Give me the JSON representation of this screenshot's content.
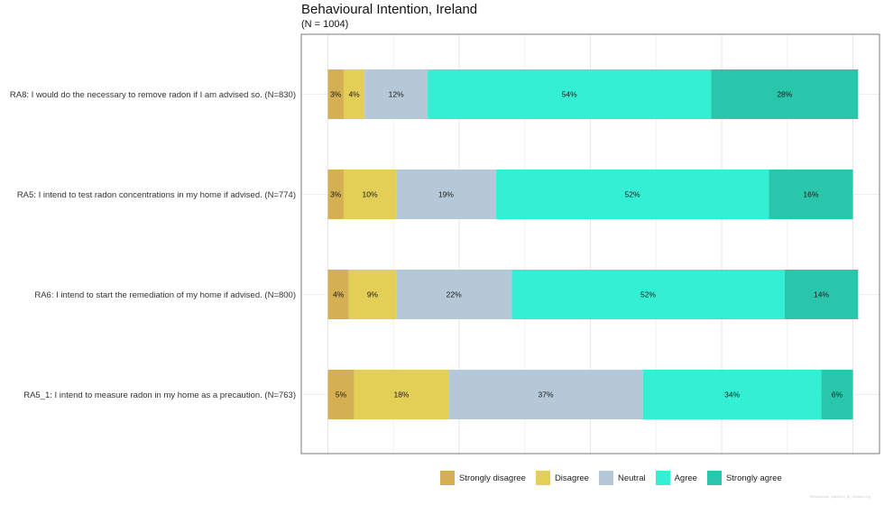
{
  "chart_data": {
    "type": "bar",
    "orientation": "horizontal",
    "stacked": true,
    "percent": true,
    "title": "Behavioural Intention, Ireland",
    "subtitle": "(N = 1004)",
    "categories": [
      "RA8: I would do the necessary to remove radon if I am advised so. (N=830)",
      "RA5: I intend to test radon concentrations in my home if advised. (N=774)",
      "RA6: I intend to start the remediation of my home if advised. (N=800)",
      "RA5_1: I intend to measure radon in my home as a precaution. (N=763)"
    ],
    "series": [
      {
        "name": "Strongly disagree",
        "color": "#D4B052",
        "values": [
          3,
          3,
          4,
          5
        ]
      },
      {
        "name": "Disagree",
        "color": "#E3CF56",
        "values": [
          4,
          10,
          9,
          18
        ]
      },
      {
        "name": "Neutral",
        "color": "#B4C8D8",
        "values": [
          12,
          19,
          22,
          37
        ]
      },
      {
        "name": "Agree",
        "color": "#33F0D4",
        "values": [
          54,
          52,
          52,
          34
        ]
      },
      {
        "name": "Strongly agree",
        "color": "#29C6AB",
        "values": [
          28,
          16,
          14,
          6
        ]
      }
    ],
    "data_labels": [
      [
        "3%",
        "4%",
        "12%",
        "54%",
        "28%"
      ],
      [
        "3%",
        "10%",
        "19%",
        "52%",
        "16%"
      ],
      [
        "4%",
        "9%",
        "22%",
        "52%",
        "14%"
      ],
      [
        "5%",
        "18%",
        "37%",
        "34%",
        "6%"
      ]
    ],
    "xlim": [
      0,
      100
    ],
    "grid": true,
    "legend_position": "bottom"
  },
  "watermark": "Behavioural_Intention_IE_Ireland.png"
}
